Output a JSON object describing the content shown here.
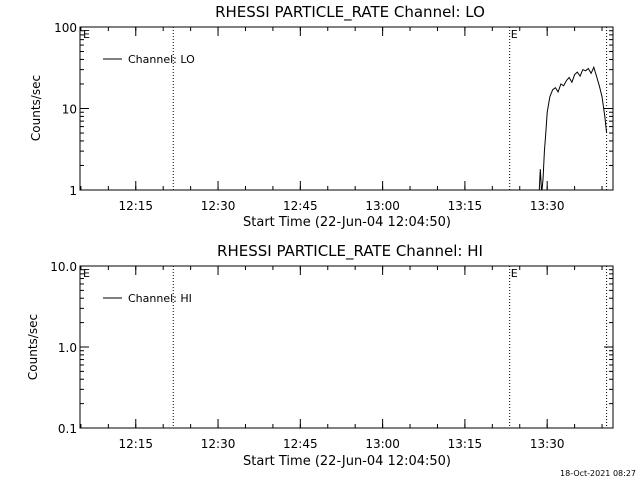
{
  "footer_text": "18-Oct-2021 08:27",
  "chart_data": [
    {
      "type": "line",
      "title": "RHESSI PARTICLE_RATE Channel: LO",
      "xlabel": "Start Time (22-Jun-04 12:04:50)",
      "ylabel": "Counts/sec",
      "y_scale": "log",
      "ylim": [
        1,
        100
      ],
      "y_tick_values": [
        1,
        10,
        100
      ],
      "y_tick_labels": [
        "1",
        "10",
        "100"
      ],
      "xlim": [
        "12:04:50",
        "13:42:00"
      ],
      "x_tick_values": [
        "12:15",
        "12:30",
        "12:45",
        "13:00",
        "13:15",
        "13:30"
      ],
      "x_tick_labels": [
        "12:15",
        "12:30",
        "12:45",
        "13:00",
        "13:15",
        "13:30"
      ],
      "grid": false,
      "legend_position": "top-left",
      "series": [
        {
          "name": "Channel: LO",
          "color": "#000000",
          "x": [
            "13:28:30",
            "13:28:45",
            "13:29:00",
            "13:29:15",
            "13:29:30",
            "13:29:45",
            "13:30:00",
            "13:30:30",
            "13:31:00",
            "13:31:30",
            "13:32:00",
            "13:32:30",
            "13:33:00",
            "13:33:30",
            "13:34:00",
            "13:34:30",
            "13:35:00",
            "13:35:30",
            "13:36:00",
            "13:36:30",
            "13:37:00",
            "13:37:30",
            "13:38:00",
            "13:38:30",
            "13:39:00",
            "13:39:30",
            "13:40:00",
            "13:40:30",
            "13:40:50"
          ],
          "y": [
            0.8,
            1.8,
            0.9,
            1.4,
            3,
            5,
            9,
            14,
            17,
            18,
            16,
            20,
            19,
            22,
            24,
            21,
            26,
            28,
            25,
            30,
            29,
            31,
            27,
            32,
            25,
            19,
            14,
            8,
            5
          ]
        }
      ],
      "vertical_markers": [
        {
          "x": "12:21:50",
          "label": ""
        },
        {
          "x": "13:23:10",
          "label": "E"
        },
        {
          "x": "13:40:50",
          "label": ""
        }
      ],
      "corner_flag": "E"
    },
    {
      "type": "line",
      "title": "RHESSI PARTICLE_RATE Channel: HI",
      "xlabel": "Start Time (22-Jun-04 12:04:50)",
      "ylabel": "Counts/sec",
      "y_scale": "log",
      "ylim": [
        0.1,
        10
      ],
      "y_tick_values": [
        0.1,
        1,
        10
      ],
      "y_tick_labels": [
        "0.1",
        "1.0",
        "10.0"
      ],
      "xlim": [
        "12:04:50",
        "13:42:00"
      ],
      "x_tick_values": [
        "12:15",
        "12:30",
        "12:45",
        "13:00",
        "13:15",
        "13:30"
      ],
      "x_tick_labels": [
        "12:15",
        "12:30",
        "12:45",
        "13:00",
        "13:15",
        "13:30"
      ],
      "grid": false,
      "legend_position": "top-left",
      "series": [
        {
          "name": "Channel: HI",
          "color": "#000000",
          "x": [],
          "y": []
        }
      ],
      "vertical_markers": [
        {
          "x": "12:21:50",
          "label": ""
        },
        {
          "x": "13:23:10",
          "label": "E"
        },
        {
          "x": "13:40:50",
          "label": ""
        }
      ],
      "corner_flag": "E"
    }
  ]
}
